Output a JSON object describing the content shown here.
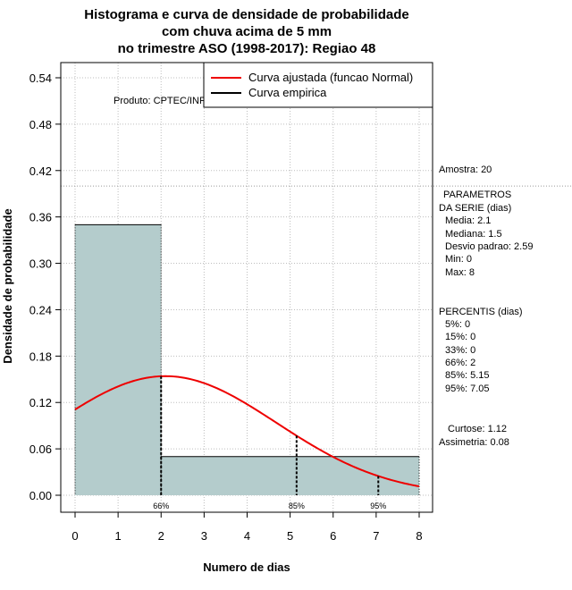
{
  "chart_data": {
    "type": "bar",
    "title_lines": [
      "Histograma e curva de densidade de probabilidade",
      "com chuva acima de 5 mm",
      "no trimestre ASO (1998-2017): Regiao 48"
    ],
    "xlabel": "Numero de dias",
    "ylabel": "Densidade de probabilidade",
    "xlim": [
      0,
      8
    ],
    "ylim": [
      0,
      0.54
    ],
    "x_ticks": [
      "0",
      "1",
      "2",
      "3",
      "4",
      "5",
      "6",
      "7",
      "8"
    ],
    "y_ticks": [
      "0.00",
      "0.06",
      "0.12",
      "0.18",
      "0.24",
      "0.30",
      "0.36",
      "0.42",
      "0.48",
      "0.54"
    ],
    "grid": true,
    "bins": [
      {
        "x0": 0,
        "x1": 2,
        "density": 0.35
      },
      {
        "x0": 2,
        "x1": 8,
        "density": 0.05
      }
    ],
    "normal_fit": {
      "name": "Curva ajustada (funcao Normal)",
      "mean": 2.1,
      "sd": 2.59,
      "color": "#ee0000"
    },
    "empirical": {
      "name": "Curva empirica",
      "color": "#000000"
    },
    "reference_line_y": 0.4,
    "percentile_markers": [
      {
        "label": "66%",
        "x": 2
      },
      {
        "label": "85%",
        "x": 5.15
      },
      {
        "label": "95%",
        "x": 7.05
      }
    ],
    "producer": "Produto: CPTEC/INPE",
    "bar_color": "#b4cccc"
  },
  "stats": {
    "amostra": "Amostra: 20",
    "params_title_1": "PARAMETROS",
    "params_title_2": "DA SERIE (dias)",
    "params": [
      "Media: 2.1",
      "Mediana: 1.5",
      "Desvio padrao: 2.59",
      "Min: 0",
      "Max: 8"
    ],
    "percentis_title": "PERCENTIS (dias)",
    "percentis": [
      "5%: 0",
      "15%: 0",
      "33%: 0",
      "66%: 2",
      "85%: 5.15",
      "95%: 7.05"
    ],
    "curtose": "Curtose: 1.12",
    "assimetria": "Assimetria: 0.08"
  }
}
